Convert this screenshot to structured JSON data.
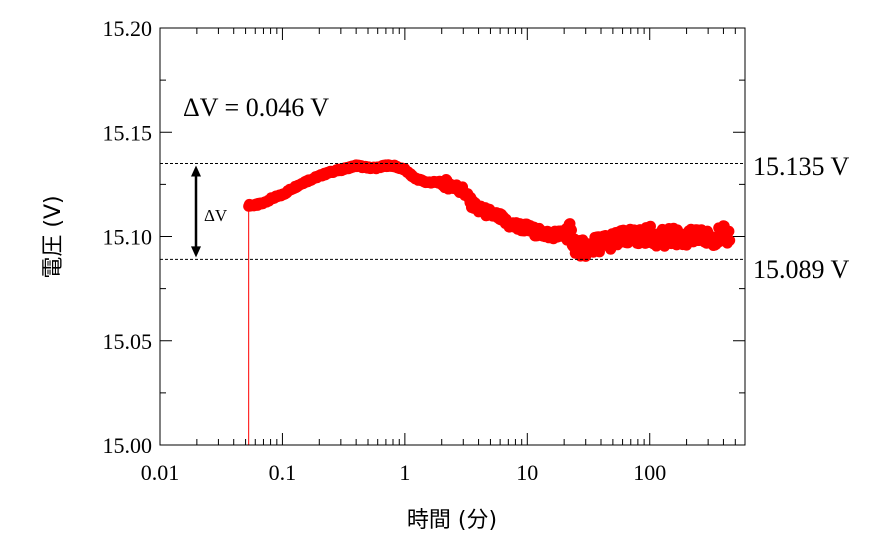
{
  "chart_data": {
    "type": "scatter",
    "xlabel": "時間 (分)",
    "ylabel": "電圧 (V)",
    "xscale": "log",
    "xlim": [
      0.01,
      600
    ],
    "ylim": [
      15.0,
      15.2
    ],
    "x_ticks": [
      0.01,
      0.1,
      1,
      10,
      100
    ],
    "x_tick_labels": [
      "0.01",
      "0.1",
      "1",
      "10",
      "100"
    ],
    "y_ticks": [
      15.0,
      15.05,
      15.1,
      15.15,
      15.2
    ],
    "y_tick_labels": [
      "15.00",
      "15.05",
      "15.10",
      "15.15",
      "15.20"
    ],
    "grid": false,
    "marker_color": "#ff0000",
    "initial_jump": {
      "x": 0.053,
      "y_from": 15.0,
      "y_to": 15.115
    },
    "series": [
      {
        "x": [
          0.053,
          0.06,
          0.07,
          0.08,
          0.1,
          0.12,
          0.15,
          0.2,
          0.25,
          0.3,
          0.4,
          0.5,
          0.6,
          0.7,
          0.8,
          1.0,
          1.2,
          1.5,
          2.0,
          2.5,
          3.0,
          3.5,
          4.0,
          5.0,
          6.0,
          7.0,
          8.0,
          10,
          12,
          15,
          20,
          22,
          25,
          30,
          40,
          50,
          60,
          80,
          100,
          120,
          150,
          200,
          250,
          300,
          350,
          400,
          450
        ],
        "y": [
          15.115,
          15.115,
          15.116,
          15.118,
          15.12,
          15.123,
          15.126,
          15.129,
          15.131,
          15.132,
          15.134,
          15.133,
          15.133,
          15.134,
          15.134,
          15.132,
          15.128,
          15.126,
          15.126,
          15.124,
          15.122,
          15.116,
          15.113,
          15.111,
          15.109,
          15.106,
          15.105,
          15.104,
          15.102,
          15.101,
          15.101,
          15.103,
          15.095,
          15.094,
          15.097,
          15.098,
          15.099,
          15.1,
          15.101,
          15.099,
          15.1,
          15.099,
          15.1,
          15.099,
          15.1,
          15.101,
          15.1
        ]
      }
    ],
    "annotations": {
      "delta_text": "ΔV = 0.046 V",
      "delta_small": "ΔV",
      "upper_value": 15.135,
      "lower_value": 15.089,
      "upper_label": "15.135 V",
      "lower_label": "15.089 V"
    }
  }
}
